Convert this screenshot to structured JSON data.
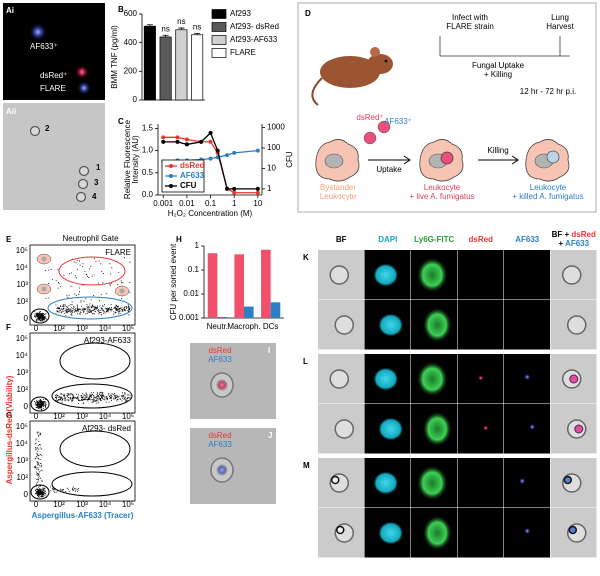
{
  "panel_a": {
    "label_i": "Ai",
    "label_ii": "Aii",
    "af633": "AF633⁺",
    "dsred": "dsRed⁺",
    "flare": "FLARE",
    "cells": [
      "2",
      "1",
      "3",
      "4"
    ]
  },
  "chart_data": [
    {
      "panel": "B",
      "type": "bar",
      "y_label": "BMM TNF (pg/ml)",
      "categories": [
        "Af293",
        "Af293- dsRed",
        "Af293-AF633",
        "FLARE"
      ],
      "values": [
        515,
        440,
        490,
        455
      ],
      "errors": [
        10,
        12,
        12,
        10
      ],
      "colors": [
        "#000000",
        "#5a5a5a",
        "#d0d0d0",
        "#ffffff"
      ],
      "annotations": [
        null,
        "ns",
        "ns",
        "ns"
      ],
      "category_legend": true,
      "ylim": [
        0,
        600
      ],
      "yticks": [
        0,
        200,
        400,
        600
      ]
    },
    {
      "panel": "C",
      "type": "line",
      "x_label": "H₂O₂ Concentration (M)",
      "y_label": [
        "Relative Fluorescence",
        "Intensity (AU)"
      ],
      "y2_label": "CFU",
      "x_log": true,
      "x": [
        0.001,
        0.004,
        0.01,
        0.04,
        0.1,
        0.2,
        0.5,
        1,
        10
      ],
      "xlim": [
        0.0006,
        15
      ],
      "xticks": [
        0.001,
        0.01,
        0.1,
        1,
        10
      ],
      "ylim": [
        0,
        1.6
      ],
      "yticks": [
        {
          "value": 0,
          "label": "0.0"
        },
        {
          "value": 0.5,
          "label": "0.5"
        },
        {
          "value": 1,
          "label": "1.0"
        },
        {
          "value": 1.5,
          "label": "1.5"
        }
      ],
      "y2_log": true,
      "y2lim": [
        0.5,
        1500
      ],
      "y2ticks": [
        1,
        10,
        100,
        1000
      ],
      "series": [
        {
          "name": "dsRed",
          "color": "#e8372f",
          "values": [
            1.3,
            1.3,
            1.25,
            1.2,
            1.2,
            0.95,
            0.15,
            0.05,
            0.05
          ]
        },
        {
          "name": "AF633",
          "color": "#2b7fc4",
          "values": [
            0.75,
            0.78,
            0.78,
            0.8,
            0.82,
            0.85,
            0.9,
            0.95,
            1.0
          ]
        },
        {
          "name": "CFU",
          "color": "#000000",
          "axis": "y2",
          "values": [
            200,
            200,
            150,
            200,
            550,
            75,
            1,
            1,
            1
          ]
        }
      ]
    },
    {
      "panel": "H",
      "type": "bar",
      "log_scale": true,
      "y_label": "CFU per sorted event",
      "categories": [
        "Neutr.",
        "Macroph.",
        "DCs"
      ],
      "series": [
        {
          "color": "#f2506a",
          "values": [
            0.5,
            0.45,
            0.7
          ]
        },
        {
          "color": "#2b7fc4",
          "values": [
            0.0011,
            0.003,
            0.0045
          ]
        }
      ],
      "ylim": [
        0.001,
        1
      ],
      "yticks": [
        0.001,
        0.01,
        0.1,
        1
      ]
    }
  ],
  "panel_d": {
    "label": "D",
    "infect": [
      "Infect with",
      "FLARE strain"
    ],
    "uptake_killing": [
      "Fungal Uptake",
      "+ Killing"
    ],
    "harvest": [
      "Lung",
      "Harvest"
    ],
    "time": "12 hr - 72 hr p.i.",
    "dsred": "dsRed⁺",
    "af633": "AF633⁺",
    "uptake": "Uptake",
    "killing": "Killing",
    "bystander": [
      "Bystander",
      "Leukocyte"
    ],
    "live": [
      "Leukocyte",
      "+ live A. fumigatus"
    ],
    "killed": [
      "Leukocyte",
      "+ killed A. fumigatus"
    ]
  },
  "flow": {
    "plots": [
      {
        "label": "E",
        "gate": "Neutrophil Gate",
        "strain": "FLARE"
      },
      {
        "label": "F",
        "strain": "Af293-AF633"
      },
      {
        "label": "G",
        "strain": "Af293- dsRed"
      }
    ],
    "ticks": [
      "0",
      "10²",
      "10³",
      "10⁴",
      "10⁵"
    ],
    "x_label": "Aspergillus-AF633 (Tracer)",
    "y_label": "Aspergillus-dsRed (Viability)"
  },
  "micrographs": {
    "panels": [
      "I",
      "J"
    ],
    "dsred": "dsRed",
    "af633": "AF633"
  },
  "imaging": {
    "columns": [
      "BF",
      "DAPI",
      "Ly6G-FITC",
      "dsRed",
      "AF633"
    ],
    "overlay": [
      "BF + ",
      "dsRed",
      " + ",
      "AF633"
    ],
    "groups": [
      "K",
      "L",
      "M"
    ]
  }
}
